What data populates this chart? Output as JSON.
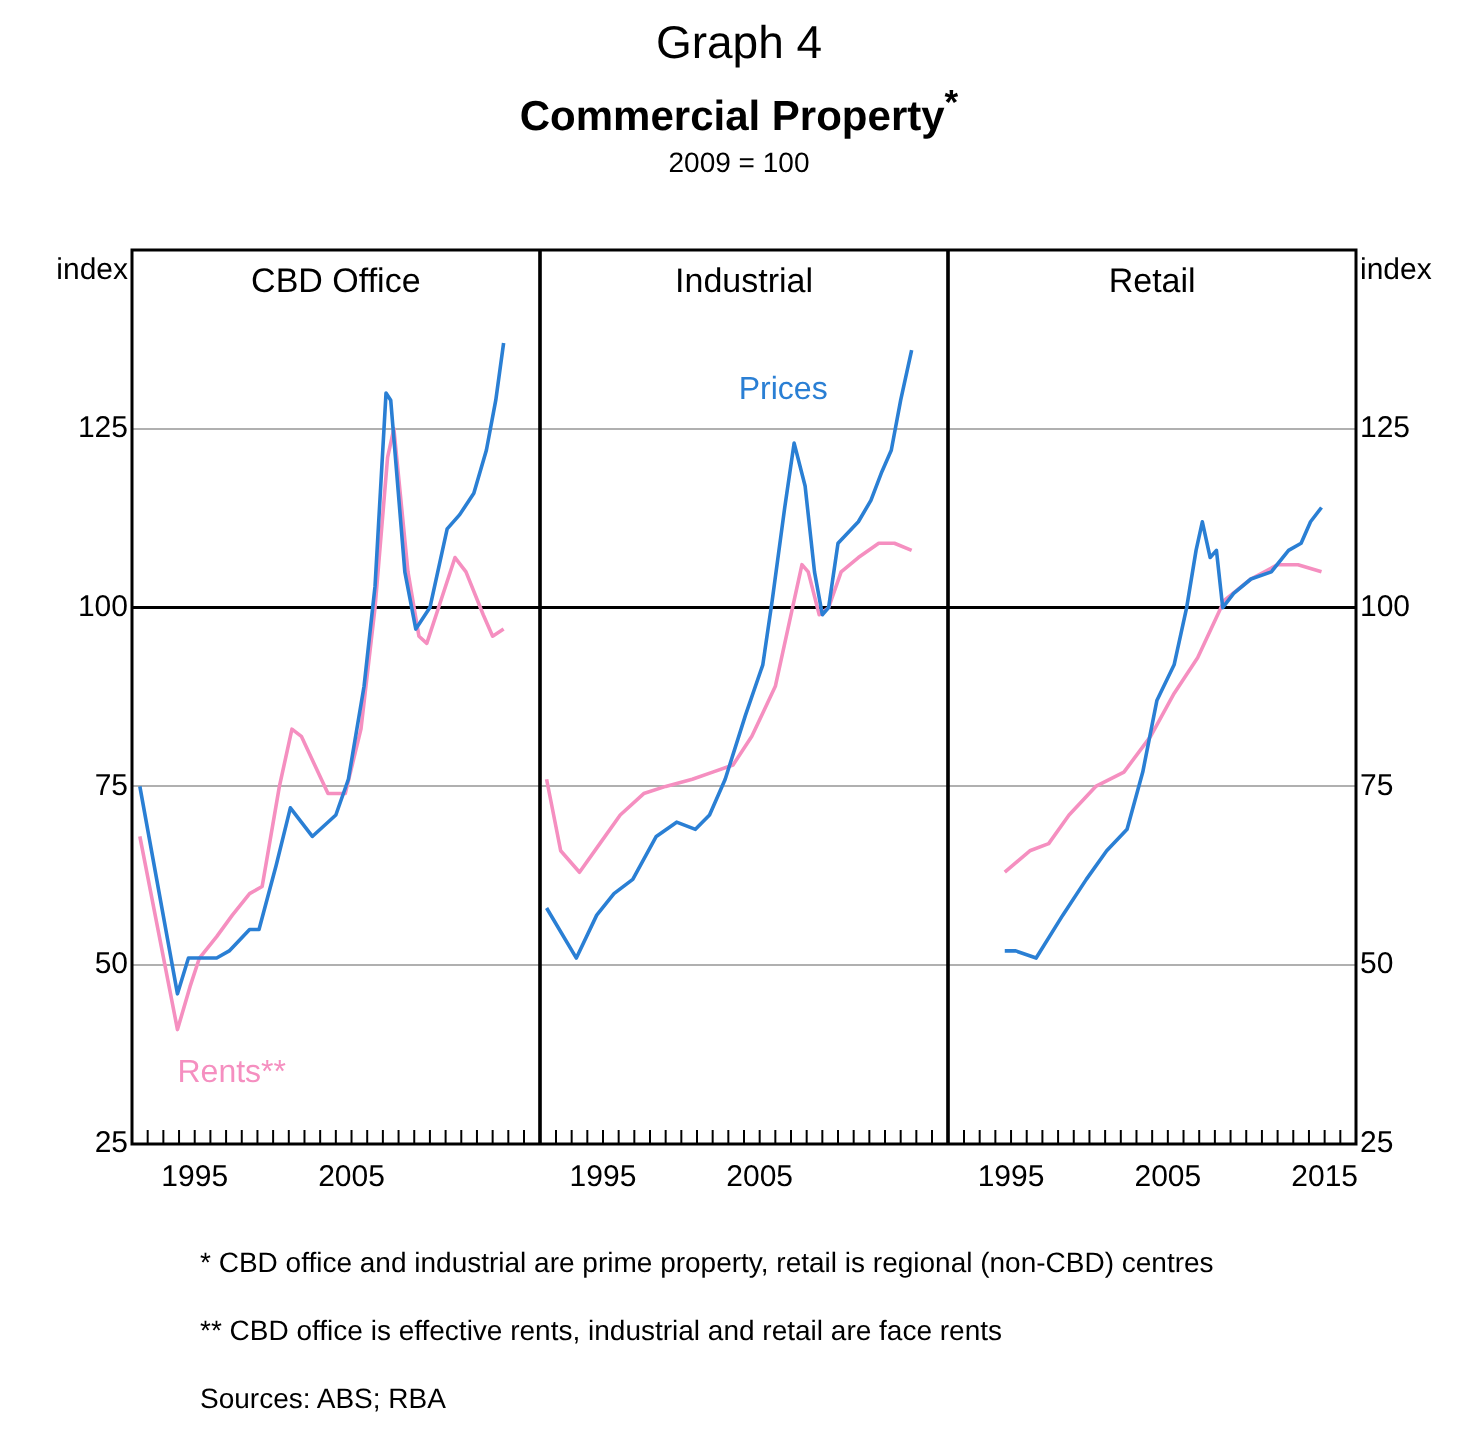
{
  "chart_data": [
    {
      "type": "other",
      "title": "Commercial Property$^{*}$",
      "subtitle": "2009 = 100",
      "annotations": [
        "Graph 4"
      ]
    },
    {
      "type": "line",
      "title": "CBD Office",
      "ylabel": "index",
      "xlim": [
        1991,
        2017
      ],
      "ylim": [
        25,
        150
      ],
      "yticks": [
        25,
        50,
        75,
        100,
        125
      ],
      "grid": "y",
      "marker": "none",
      "line_style": "solid",
      "xticks": [
        {
          "value": 1992,
          "label": null
        },
        {
          "value": 1993,
          "label": null
        },
        {
          "value": 1994,
          "label": null
        },
        1995,
        {
          "value": 1996,
          "label": null
        },
        {
          "value": 1997,
          "label": null
        },
        {
          "value": 1998,
          "label": null
        },
        {
          "value": 1999,
          "label": null
        },
        {
          "value": 2000,
          "label": null
        },
        {
          "value": 2001,
          "label": null
        },
        {
          "value": 2002,
          "label": null
        },
        {
          "value": 2003,
          "label": null
        },
        {
          "value": 2004,
          "label": null
        },
        2005,
        {
          "value": 2006,
          "label": null
        },
        {
          "value": 2007,
          "label": null
        },
        {
          "value": 2008,
          "label": null
        },
        {
          "value": 2009,
          "label": null
        },
        {
          "value": 2010,
          "label": null
        },
        {
          "value": 2011,
          "label": null
        },
        {
          "value": 2012,
          "label": null
        },
        {
          "value": 2013,
          "label": null
        },
        {
          "value": 2014,
          "label": null
        },
        {
          "value": 2015,
          "label": null
        },
        {
          "value": 2016,
          "label": null
        }
      ],
      "ref_lines": [
        {
          "axis": "y",
          "value": 100,
          "color": "#000000"
        }
      ],
      "series": [
        {
          "color": "#2a7fd4",
          "x": [
            1991.5,
            1993.9,
            1994.6,
            1996.4,
            1997.2,
            1998.5,
            1999.1,
            2000.2,
            2001.1,
            2001.8,
            2002.5,
            2004,
            2004.8,
            2005.8,
            2006.5,
            2007.2,
            2007.5,
            2008.4,
            2009.1,
            2010,
            2011.1,
            2011.9,
            2012.8,
            2013.6,
            2014.2,
            2014.7
          ],
          "values": [
            75,
            46,
            51,
            51,
            52,
            55,
            55,
            64,
            72,
            70,
            68,
            71,
            76,
            89,
            103,
            130,
            129,
            105,
            97,
            100,
            111,
            113,
            116,
            122,
            129,
            137
          ]
        },
        {
          "name": "Rents**",
          "color": "#f58fc0",
          "x": [
            1991.5,
            1993.9,
            1994.7,
            1995.3,
            1996.4,
            1997.4,
            1998.5,
            1999.3,
            2000.4,
            2001.2,
            2001.8,
            2003.5,
            2004.6,
            2005.6,
            2006.5,
            2007.3,
            2007.7,
            2008.6,
            2009.3,
            2009.8,
            2010.7,
            2011.6,
            2012.3,
            2013.4,
            2014,
            2014.7
          ],
          "values": [
            68,
            41,
            47,
            51,
            54,
            57,
            60,
            61,
            75,
            83,
            82,
            74,
            74,
            83,
            100,
            121,
            125,
            105,
            96,
            95,
            101,
            107,
            105,
            99,
            96,
            97
          ]
        }
      ]
    },
    {
      "type": "line",
      "title": "Industrial",
      "xlim": [
        1991,
        2017
      ],
      "ylim": [
        25,
        150
      ],
      "yticks": [
        25,
        50,
        75,
        100,
        125
      ],
      "grid": "y",
      "marker": "none",
      "line_style": "solid",
      "tick_labels": "x",
      "xticks": [
        {
          "value": 1992,
          "label": null
        },
        {
          "value": 1993,
          "label": null
        },
        {
          "value": 1994,
          "label": null
        },
        1995,
        {
          "value": 1996,
          "label": null
        },
        {
          "value": 1997,
          "label": null
        },
        {
          "value": 1998,
          "label": null
        },
        {
          "value": 1999,
          "label": null
        },
        {
          "value": 2000,
          "label": null
        },
        {
          "value": 2001,
          "label": null
        },
        {
          "value": 2002,
          "label": null
        },
        {
          "value": 2003,
          "label": null
        },
        {
          "value": 2004,
          "label": null
        },
        2005,
        {
          "value": 2006,
          "label": null
        },
        {
          "value": 2007,
          "label": null
        },
        {
          "value": 2008,
          "label": null
        },
        {
          "value": 2009,
          "label": null
        },
        {
          "value": 2010,
          "label": null
        },
        {
          "value": 2011,
          "label": null
        },
        {
          "value": 2012,
          "label": null
        },
        {
          "value": 2013,
          "label": null
        },
        {
          "value": 2014,
          "label": null
        },
        {
          "value": 2015,
          "label": null
        },
        {
          "value": 2016,
          "label": null
        }
      ],
      "ref_lines": [
        {
          "axis": "y",
          "value": 100,
          "color": "#000000"
        }
      ],
      "series": [
        {
          "name": "Prices",
          "color": "#2a7fd4",
          "x": [
            1991.4,
            1993.3,
            1994.6,
            1995.7,
            1996.9,
            1998.4,
            1999.7,
            2000.9,
            2001.8,
            2002.8,
            2004.1,
            2005.2,
            2005.8,
            2006.6,
            2007.2,
            2007.9,
            2008.5,
            2009,
            2009.4,
            2010,
            2011.3,
            2012.1,
            2012.8,
            2013.4,
            2014,
            2014.7
          ],
          "values": [
            58,
            51,
            57,
            60,
            62,
            68,
            70,
            69,
            71,
            76,
            85,
            92,
            101,
            114,
            123,
            117,
            105,
            99,
            100,
            109,
            112,
            115,
            119,
            122,
            129,
            136
          ]
        },
        {
          "color": "#f58fc0",
          "x": [
            1991.4,
            1992.3,
            1993.5,
            1994.8,
            1996.1,
            1997.6,
            1999,
            2000.7,
            2002,
            2003.3,
            2004.5,
            2006,
            2006.9,
            2007.7,
            2008.1,
            2008.8,
            2009.4,
            2010.2,
            2011.3,
            2012.6,
            2013.6,
            2014.7
          ],
          "values": [
            76,
            66,
            63,
            67,
            71,
            74,
            75,
            76,
            77,
            78,
            82,
            89,
            98,
            106,
            105,
            99,
            100,
            105,
            107,
            109,
            109,
            108
          ]
        }
      ]
    },
    {
      "type": "line",
      "title": "Retail",
      "y2label": "index",
      "xlim": [
        1991,
        2017
      ],
      "y2lim": [
        25,
        150
      ],
      "y2ticks": [
        25,
        50,
        75,
        100,
        125
      ],
      "grid": "y",
      "marker": "none",
      "line_style": "solid",
      "xticks": [
        {
          "value": 1992,
          "label": null
        },
        {
          "value": 1993,
          "label": null
        },
        {
          "value": 1994,
          "label": null
        },
        1995,
        {
          "value": 1996,
          "label": null
        },
        {
          "value": 1997,
          "label": null
        },
        {
          "value": 1998,
          "label": null
        },
        {
          "value": 1999,
          "label": null
        },
        {
          "value": 2000,
          "label": null
        },
        {
          "value": 2001,
          "label": null
        },
        {
          "value": 2002,
          "label": null
        },
        {
          "value": 2003,
          "label": null
        },
        {
          "value": 2004,
          "label": null
        },
        2005,
        {
          "value": 2006,
          "label": null
        },
        {
          "value": 2007,
          "label": null
        },
        {
          "value": 2008,
          "label": null
        },
        {
          "value": 2009,
          "label": null
        },
        {
          "value": 2010,
          "label": null
        },
        {
          "value": 2011,
          "label": null
        },
        {
          "value": 2012,
          "label": null
        },
        {
          "value": 2013,
          "label": null
        },
        {
          "value": 2014,
          "label": null
        },
        2015,
        {
          "value": 2016,
          "label": null
        }
      ],
      "ref_lines": [
        {
          "axis": "y2",
          "value": 100,
          "color": "#000000"
        }
      ],
      "series": [
        {
          "color": "#2a7fd4",
          "axis": "y2",
          "x": [
            1994.6,
            1995.3,
            1996.6,
            1998.3,
            1999.8,
            2001.1,
            2002.4,
            2003.4,
            2004.3,
            2005.4,
            2006.2,
            2006.8,
            2007.2,
            2007.7,
            2008.1,
            2008.5,
            2009.2,
            2010.3,
            2011.6,
            2012.7,
            2013.5,
            2014.1,
            2014.8
          ],
          "values": [
            52,
            52,
            51,
            57,
            62,
            66,
            69,
            77,
            87,
            92,
            100,
            108,
            112,
            107,
            108,
            100,
            102,
            104,
            105,
            108,
            109,
            112,
            114
          ]
        },
        {
          "color": "#f58fc0",
          "axis": "y2",
          "x": [
            1994.6,
            1996.2,
            1997.4,
            1998.7,
            2000.4,
            2002.2,
            2003.9,
            2005.4,
            2006.9,
            2008.6,
            2010.3,
            2012,
            2013.3,
            2014.8
          ],
          "values": [
            63,
            66,
            67,
            71,
            75,
            77,
            82,
            88,
            93,
            101,
            104,
            106,
            106,
            105
          ]
        }
      ]
    },
    {
      "type": "other",
      "annotations": [
        "* CBD office and industrial are prime property, retail is regional (non-CBD) centres",
        "** CBD office is effective rents, industrial and retail are face rents",
        "Sources: ABS; RBA"
      ]
    }
  ]
}
